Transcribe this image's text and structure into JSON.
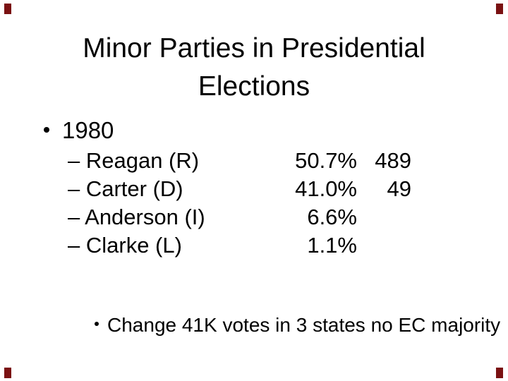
{
  "slide": {
    "background_color": "#ffffff",
    "text_color": "#000000",
    "corner_mark_color": "#7a1112",
    "title": {
      "line1": "Minor Parties in Presidential",
      "line2": "Elections"
    },
    "year_bullet": {
      "bullet_icon": "filled-circle-bullet",
      "label": "1980"
    },
    "results": [
      {
        "name": "– Reagan (R)",
        "pct": "50.7%",
        "ec": "489"
      },
      {
        "name": "– Carter (D)",
        "pct": "41.0%",
        "ec": "49"
      },
      {
        "name": "– Anderson (I)",
        "pct": "6.6%",
        "ec": ""
      },
      {
        "name": "– Clarke (L)",
        "pct": "1.1%",
        "ec": ""
      }
    ],
    "note": {
      "bullet_icon": "filled-circle-bullet",
      "text": "Change 41K votes in 3 states no EC majority"
    }
  }
}
